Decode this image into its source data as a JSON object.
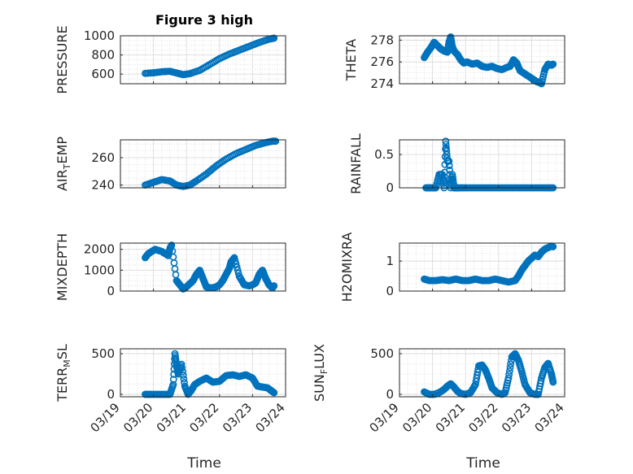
{
  "figure_title": "Figure 3 high",
  "x_label": "Time",
  "marker_color": "#0072BD",
  "x_ticks": [
    "03/19",
    "03/20",
    "03/21",
    "03/22",
    "03/23",
    "03/24"
  ],
  "chart_data": [
    {
      "type": "scatter",
      "id": "pressure",
      "ylabel": "PRESSURE",
      "xlim": [
        "03/19",
        "03/24"
      ],
      "ylim": [
        500,
        1000
      ],
      "yticks": [
        600,
        800,
        1000
      ],
      "grid": true,
      "series": [
        {
          "name": "",
          "x_days": [
            19.75,
            20.0,
            20.25,
            20.5,
            20.7,
            20.9,
            21.1,
            21.4,
            21.7,
            22.0,
            22.3,
            22.6,
            22.9,
            23.2,
            23.5,
            23.65
          ],
          "y": [
            608,
            614,
            625,
            630,
            612,
            595,
            605,
            640,
            700,
            762,
            810,
            850,
            890,
            930,
            965,
            975
          ]
        }
      ]
    },
    {
      "type": "scatter",
      "id": "theta",
      "ylabel": "THETA",
      "xlim": [
        "03/19",
        "03/24"
      ],
      "ylim": [
        274,
        278.4
      ],
      "yticks": [
        274,
        276,
        278
      ],
      "grid": true,
      "series": [
        {
          "name": "",
          "x_days": [
            19.75,
            19.85,
            19.95,
            20.05,
            20.15,
            20.25,
            20.35,
            20.45,
            20.5,
            20.55,
            20.6,
            20.65,
            20.75,
            20.85,
            20.95,
            21.05,
            21.2,
            21.35,
            21.5,
            21.65,
            21.8,
            21.95,
            22.1,
            22.25,
            22.35,
            22.45,
            22.55,
            22.65,
            22.75,
            22.85,
            22.95,
            23.05,
            23.15,
            23.25,
            23.3,
            23.4,
            23.5,
            23.6,
            23.65
          ],
          "y": [
            276.4,
            276.9,
            277.3,
            277.8,
            277.5,
            277.2,
            277.0,
            276.9,
            277.8,
            278.3,
            277.4,
            277.0,
            276.7,
            276.2,
            275.9,
            276.0,
            275.8,
            275.9,
            275.6,
            275.5,
            275.6,
            275.4,
            275.3,
            275.5,
            275.6,
            276.2,
            275.9,
            275.2,
            275.0,
            274.8,
            274.6,
            274.4,
            274.2,
            274.1,
            274.0,
            275.3,
            275.8,
            275.7,
            275.8
          ]
        }
      ]
    },
    {
      "type": "scatter",
      "id": "air_temp",
      "ylabel_main": "AIR",
      "ylabel_sub": "T",
      "ylabel_tail": "EMP",
      "xlim": [
        "03/19",
        "03/24"
      ],
      "ylim": [
        238,
        273
      ],
      "yticks": [
        240,
        260
      ],
      "grid": true,
      "series": [
        {
          "name": "",
          "x_days": [
            19.75,
            20.0,
            20.25,
            20.5,
            20.7,
            20.9,
            21.1,
            21.3,
            21.6,
            21.9,
            22.2,
            22.5,
            22.8,
            23.1,
            23.4,
            23.6,
            23.7
          ],
          "y": [
            240,
            242,
            244,
            243,
            240,
            239,
            240,
            243,
            248,
            254,
            259,
            263,
            266,
            269,
            271,
            272,
            272
          ]
        }
      ]
    },
    {
      "type": "scatter",
      "id": "rainfall",
      "ylabel": "RAINFALL",
      "xlim": [
        "03/19",
        "03/24"
      ],
      "ylim": [
        0,
        0.72
      ],
      "yticks": [
        0,
        0.5
      ],
      "grid": true,
      "series": [
        {
          "name": "",
          "x_days": [
            19.8,
            19.9,
            20.0,
            20.1,
            20.2,
            20.3,
            20.35,
            20.4,
            20.45,
            20.5,
            20.55,
            20.6,
            20.65,
            20.7,
            20.8,
            21.0,
            21.3,
            21.6,
            21.9,
            22.2,
            22.5,
            22.8,
            23.1,
            23.4,
            23.65
          ],
          "y": [
            0,
            0,
            0,
            0,
            0.2,
            0.2,
            0,
            0.7,
            0.4,
            0.4,
            0,
            0.2,
            0,
            0,
            0,
            0,
            0,
            0,
            0,
            0,
            0,
            0,
            0,
            0,
            0
          ]
        }
      ]
    },
    {
      "type": "scatter",
      "id": "mixdepth",
      "ylabel": "MIXDEPTH",
      "xlim": [
        "03/19",
        "03/24"
      ],
      "ylim": [
        0,
        2300
      ],
      "yticks": [
        0,
        1000,
        2000
      ],
      "grid": true,
      "series": [
        {
          "name": "",
          "x_days": [
            19.75,
            19.85,
            19.95,
            20.05,
            20.15,
            20.25,
            20.35,
            20.45,
            20.5,
            20.55,
            20.7,
            20.8,
            20.9,
            21.0,
            21.1,
            21.2,
            21.3,
            21.4,
            21.5,
            21.6,
            21.75,
            21.9,
            22.0,
            22.1,
            22.2,
            22.3,
            22.35,
            22.45,
            22.6,
            22.75,
            22.9,
            23.0,
            23.1,
            23.2,
            23.3,
            23.4,
            23.5,
            23.6,
            23.65
          ],
          "y": [
            1600,
            1800,
            1900,
            2000,
            1950,
            1900,
            1800,
            1700,
            2050,
            2200,
            500,
            300,
            100,
            200,
            350,
            500,
            800,
            1000,
            600,
            200,
            150,
            200,
            300,
            500,
            800,
            1100,
            1400,
            1600,
            700,
            300,
            250,
            300,
            400,
            800,
            1000,
            600,
            300,
            150,
            250
          ]
        }
      ]
    },
    {
      "type": "scatter",
      "id": "h2omixra",
      "ylabel": "H2OMIXRA",
      "xlim": [
        "03/19",
        "03/24"
      ],
      "ylim": [
        0,
        1.6
      ],
      "yticks": [
        0,
        1
      ],
      "grid": true,
      "series": [
        {
          "name": "",
          "x_days": [
            19.75,
            19.9,
            20.1,
            20.3,
            20.5,
            20.7,
            20.9,
            21.1,
            21.3,
            21.5,
            21.7,
            21.9,
            22.1,
            22.3,
            22.5,
            22.6,
            22.7,
            22.8,
            22.9,
            23.0,
            23.1,
            23.2,
            23.3,
            23.4,
            23.5,
            23.6,
            23.65
          ],
          "y": [
            0.4,
            0.35,
            0.35,
            0.38,
            0.35,
            0.4,
            0.35,
            0.35,
            0.4,
            0.35,
            0.35,
            0.4,
            0.35,
            0.3,
            0.35,
            0.5,
            0.7,
            0.85,
            1.0,
            1.1,
            1.2,
            1.15,
            1.3,
            1.4,
            1.45,
            1.5,
            1.48
          ]
        }
      ]
    },
    {
      "type": "scatter",
      "id": "terr_msl",
      "ylabel_main": "TERR",
      "ylabel_sub": "M",
      "ylabel_tail": "SL",
      "xlim": [
        "03/19",
        "03/24"
      ],
      "ylim": [
        -30,
        560
      ],
      "yticks": [
        0,
        500
      ],
      "grid": true,
      "series": [
        {
          "name": "",
          "x_days": [
            19.75,
            19.9,
            20.1,
            20.3,
            20.5,
            20.6,
            20.65,
            20.7,
            20.75,
            20.85,
            20.95,
            21.05,
            21.15,
            21.25,
            21.4,
            21.6,
            21.8,
            22.0,
            22.2,
            22.4,
            22.6,
            22.8,
            23.0,
            23.15,
            23.3,
            23.45,
            23.55,
            23.65
          ],
          "y": [
            0,
            0,
            0,
            0,
            0,
            120,
            500,
            350,
            250,
            370,
            100,
            0,
            50,
            120,
            160,
            200,
            150,
            160,
            230,
            240,
            220,
            240,
            200,
            100,
            90,
            80,
            50,
            20
          ]
        }
      ]
    },
    {
      "type": "scatter",
      "id": "sun_flux",
      "ylabel_main": "SUN",
      "ylabel_sub": "F",
      "ylabel_tail": "LUX",
      "xlim": [
        "03/19",
        "03/24"
      ],
      "ylim": [
        -30,
        560
      ],
      "yticks": [
        0,
        500
      ],
      "grid": true,
      "series": [
        {
          "name": "",
          "x_days": [
            19.75,
            19.9,
            20.05,
            20.2,
            20.35,
            20.45,
            20.55,
            20.65,
            20.75,
            20.85,
            21.0,
            21.15,
            21.3,
            21.4,
            21.5,
            21.6,
            21.7,
            21.8,
            21.95,
            22.1,
            22.2,
            22.3,
            22.4,
            22.5,
            22.6,
            22.7,
            22.8,
            22.95,
            23.1,
            23.2,
            23.3,
            23.4,
            23.5,
            23.6,
            23.65
          ],
          "y": [
            30,
            0,
            0,
            20,
            60,
            100,
            130,
            90,
            40,
            10,
            0,
            20,
            120,
            350,
            360,
            300,
            200,
            80,
            20,
            0,
            20,
            200,
            460,
            500,
            420,
            280,
            120,
            20,
            0,
            0,
            200,
            330,
            380,
            250,
            150
          ]
        }
      ]
    }
  ]
}
